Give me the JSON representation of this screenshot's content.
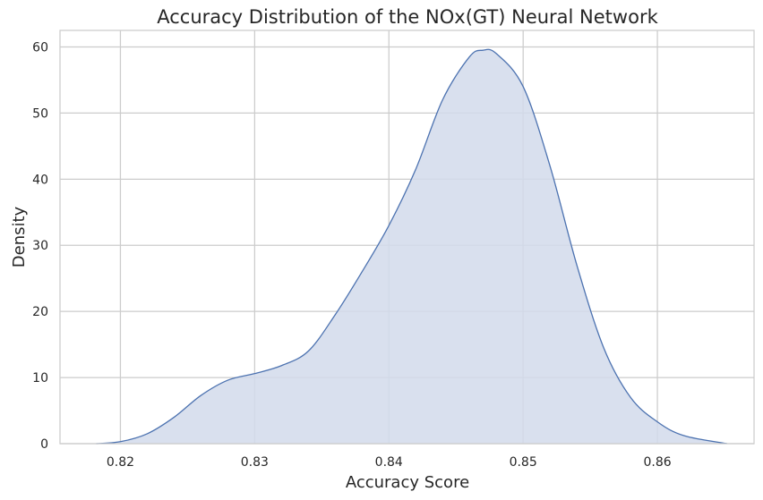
{
  "chart_data": {
    "type": "area",
    "title": "Accuracy Distribution of the NOx(GT) Neural Network",
    "xlabel": "Accuracy Score",
    "ylabel": "Density",
    "xlim": [
      0.8155,
      0.8672
    ],
    "ylim": [
      0,
      62.5
    ],
    "xticks": [
      0.82,
      0.83,
      0.84,
      0.85,
      0.86
    ],
    "xtick_labels": [
      "0.82",
      "0.83",
      "0.84",
      "0.85",
      "0.86"
    ],
    "yticks": [
      0,
      10,
      20,
      30,
      40,
      50,
      60
    ],
    "ytick_labels": [
      "0",
      "10",
      "20",
      "30",
      "40",
      "50",
      "60"
    ],
    "grid": true,
    "fill_color": "#d2dbeb",
    "line_color": "#4c72b0",
    "grid_color": "#cccccc",
    "x": [
      0.8182,
      0.82,
      0.822,
      0.824,
      0.826,
      0.828,
      0.83,
      0.832,
      0.834,
      0.836,
      0.838,
      0.84,
      0.842,
      0.844,
      0.846,
      0.847,
      0.848,
      0.85,
      0.852,
      0.854,
      0.856,
      0.858,
      0.86,
      0.862,
      0.8652
    ],
    "y": [
      0.0,
      0.3,
      1.5,
      4.0,
      7.3,
      9.6,
      10.6,
      11.8,
      14.0,
      19.5,
      26.0,
      33.0,
      41.5,
      52.0,
      58.5,
      59.5,
      59.0,
      54.0,
      42.0,
      27.0,
      14.5,
      7.0,
      3.3,
      1.2,
      0.0
    ]
  }
}
